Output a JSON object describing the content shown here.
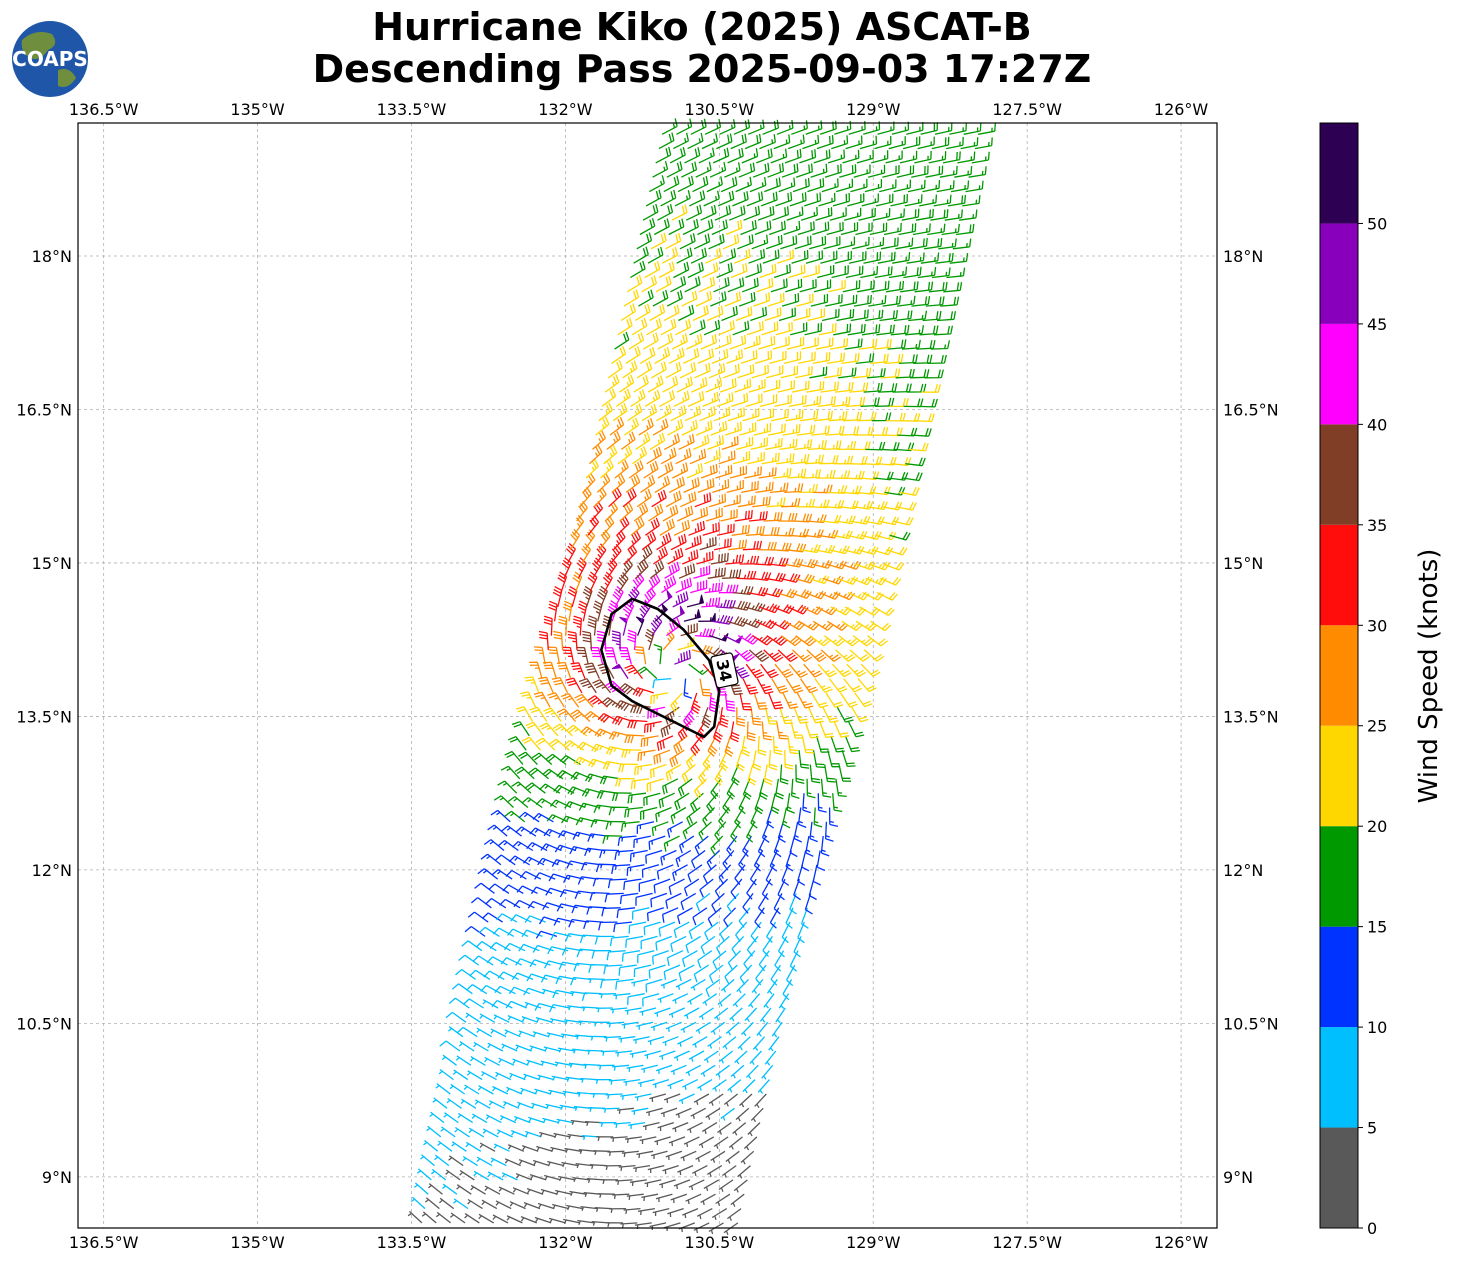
{
  "logo": {
    "text": "COAPS"
  },
  "chart_data": {
    "type": "wind-barb-map",
    "title_line1": "Hurricane Kiko (2025) ASCAT-B",
    "title_line2": "Descending Pass 2025-09-03 17:27Z",
    "lon_range": [
      -136.75,
      -125.65
    ],
    "lat_range": [
      8.5,
      19.3
    ],
    "lon_ticks": [
      "136.5°W",
      "135°W",
      "133.5°W",
      "132°W",
      "130.5°W",
      "129°W",
      "127.5°W",
      "126°W"
    ],
    "lon_tick_values": [
      -136.5,
      -135,
      -133.5,
      -132,
      -130.5,
      -129,
      -127.5,
      -126
    ],
    "lat_ticks": [
      "9°N",
      "10.5°N",
      "12°N",
      "13.5°N",
      "15°N",
      "16.5°N",
      "18°N"
    ],
    "lat_tick_values": [
      9,
      10.5,
      12,
      13.5,
      15,
      16.5,
      18
    ],
    "grid": true,
    "storm_center": {
      "lon": -130.95,
      "lat": 14.0
    },
    "contour_label": "34",
    "contour_34kt": [
      [
        -131.35,
        14.65
      ],
      [
        -131.1,
        14.55
      ],
      [
        -130.85,
        14.35
      ],
      [
        -130.6,
        14.05
      ],
      [
        -130.5,
        13.75
      ],
      [
        -130.55,
        13.4
      ],
      [
        -130.65,
        13.3
      ],
      [
        -130.95,
        13.45
      ],
      [
        -131.35,
        13.65
      ],
      [
        -131.55,
        13.8
      ],
      [
        -131.65,
        14.15
      ],
      [
        -131.55,
        14.5
      ],
      [
        -131.35,
        14.65
      ]
    ],
    "colorbar": {
      "label": "Wind Speed (knots)",
      "bounds": [
        0,
        5,
        10,
        15,
        20,
        25,
        30,
        35,
        40,
        45,
        50,
        55
      ],
      "tick_labels": [
        "0",
        "5",
        "10",
        "15",
        "20",
        "25",
        "30",
        "35",
        "40",
        "45",
        "50"
      ],
      "colors": [
        "#595959",
        "#00bfff",
        "#0033ff",
        "#009900",
        "#ffd700",
        "#ff8c00",
        "#ff0d0d",
        "#803e26",
        "#ff00ff",
        "#8800bb",
        "#2e0054"
      ]
    },
    "vortex": {
      "vmax_kt": 48,
      "rmax_deg": 0.45,
      "inflow_deg": 25,
      "ambient_kt": 14,
      "ambient_from_deg": 60
    }
  }
}
